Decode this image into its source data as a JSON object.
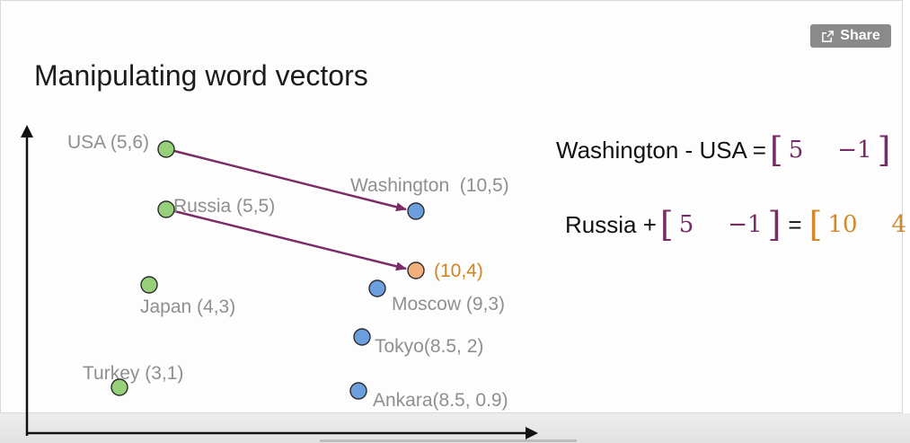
{
  "share": {
    "label": "Share",
    "icon": "share-icon"
  },
  "slide": {
    "title": "Manipulating word vectors"
  },
  "colors": {
    "green": "#96d17a",
    "blue": "#6b9fdd",
    "orange_point": "#f3b07c",
    "arrow": "#7b2b68",
    "label_gray": "#8f8f8f",
    "label_orange": "#d4821f",
    "vector_purple": "#7a2b67",
    "vector_orange": "#d08a2c"
  },
  "points": [
    {
      "name": "USA",
      "label": "USA (5,6)",
      "color": "green"
    },
    {
      "name": "Russia",
      "label": "Russia (5,5)",
      "color": "green"
    },
    {
      "name": "Japan",
      "label": "Japan (4,3)",
      "color": "green"
    },
    {
      "name": "Turkey",
      "label": "Turkey (3,1)",
      "color": "green"
    },
    {
      "name": "Washington",
      "label": "Washington  (10,5)",
      "color": "blue"
    },
    {
      "name": "result",
      "label": "(10,4)",
      "color": "orange"
    },
    {
      "name": "Moscow",
      "label": "Moscow (9,3)",
      "color": "blue"
    },
    {
      "name": "Tokyo",
      "label": "Tokyo(8.5, 2)",
      "color": "blue"
    },
    {
      "name": "Ankara",
      "label": "Ankara(8.5, 0.9)",
      "color": "blue"
    }
  ],
  "equations": {
    "eq1": {
      "lhs": "Washington - USA =",
      "vector": [
        "5",
        "−1"
      ]
    },
    "eq2": {
      "lhs": "Russia +",
      "vector": [
        "5",
        "−1"
      ],
      "equals": "=",
      "result": [
        "10",
        "4"
      ]
    }
  }
}
